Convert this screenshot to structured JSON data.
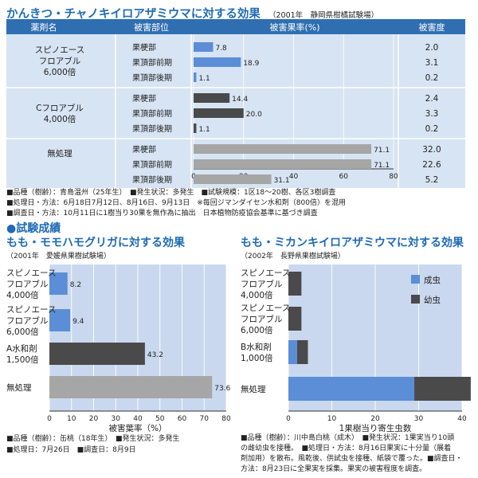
{
  "colors": {
    "blue_title": "#1f6bb5",
    "header_bg": "#2f6fb1",
    "table_bg": "#d7e4f3",
    "bar_grey": "#a6a6a6",
    "bar_blue": "#5b8ed6",
    "bar_dark": "#4a4a4a",
    "plot_bg": "#c9d8ee"
  },
  "top": {
    "title": "かんきつ・チャノキイロアザミウマに対する効果",
    "source": "（2001年　静岡県柑橘試験場）",
    "headers": {
      "agent": "薬剤名",
      "part": "被害部位",
      "rate": "被害果率(%)",
      "degree": "被害度"
    },
    "notes": [
      "■品種（樹齢）：青島温州（25年生）　■発生状況：多発生　■試験規模：1区18～20樹、各区3樹調査",
      "■処理日・方法：6月18日7月12日、8月16日、9月13日　※毎回ジマンダイセン水和剤（800倍）を混用",
      "■調査日・方法：10月11日に1樹当り30果を無作為に抽出　日本植物防疫協会基準に基づき調査"
    ]
  },
  "results_heading": "●試験成績",
  "bottom_left": {
    "title": "もも・モモハモグリガに対する効果",
    "source": "（2001年　愛媛県果樹試験場）",
    "notes": [
      "■品種（樹齢）：缶桃（18年生）　■発生状況：多発生",
      "■処理日：7月26日　■調査日：8月9日"
    ]
  },
  "bottom_right": {
    "title": "もも・ミカンキイロアザミウマに対する効果",
    "source": "（2002年　長野県果樹試験場）",
    "notes": [
      "■品種（樹齢）：川中島白桃（成木）　■発生状況：1果実当り10頭",
      "の雌幼虫を接種。　■処理日・方法：8月16日果実に十分量（展着",
      "剤加用）を散布。風乾後、供試虫を接種、紙袋で覆った。■調査日・",
      "方法：8月23日に全果実を採集。果実の被害程度を調査。"
    ]
  },
  "chart_data": [
    {
      "type": "bar",
      "orientation": "horizontal",
      "title": "かんきつ・チャノキイロアザミウマに対する効果",
      "groups": [
        {
          "agent_lines": [
            "スピノエース",
            "フロアブル",
            "6,000倍"
          ],
          "rows": [
            {
              "part": "果梗部",
              "value": 7.8,
              "degree": "2.0"
            },
            {
              "part": "果頂部前期",
              "value": 18.9,
              "degree": "3.1"
            },
            {
              "part": "果頂部後期",
              "value": 1.1,
              "degree": "0.2"
            }
          ]
        },
        {
          "agent_lines": [
            "Cフロアブル",
            "4,000倍"
          ],
          "rows": [
            {
              "part": "果梗部",
              "value": 14.4,
              "degree": "2.4"
            },
            {
              "part": "果頂部前期",
              "value": 20.0,
              "degree": "3.3"
            },
            {
              "part": "果頂部後期",
              "value": 1.1,
              "degree": "0.2"
            }
          ]
        },
        {
          "agent_lines": [
            "無処理"
          ],
          "rows": [
            {
              "part": "果梗部",
              "value": 71.1,
              "degree": "32.0"
            },
            {
              "part": "果頂部前期",
              "value": 71.1,
              "degree": "22.6"
            },
            {
              "part": "果頂部後期",
              "value": 31.1,
              "degree": "5.2"
            }
          ]
        }
      ],
      "value_labels": [
        "7.8",
        "18.9",
        "1.1",
        "14.4",
        "20.0",
        "1.1",
        "71.1",
        "71.1",
        "31.1"
      ],
      "xlim": [
        0,
        80
      ],
      "xticks": [
        "0",
        "20",
        "40",
        "60",
        "80"
      ]
    },
    {
      "type": "bar",
      "orientation": "horizontal",
      "title": "もも・モモハモグリガに対する効果",
      "xlabel": "被害葉率（%）",
      "categories": [
        {
          "lines": [
            "スピノエース",
            "フロアブル",
            "4,000倍"
          ],
          "value": 8.2,
          "label": "8.2"
        },
        {
          "lines": [
            "スピノエース",
            "フロアブル",
            "6,000倍"
          ],
          "value": 9.4,
          "label": "9.4"
        },
        {
          "lines": [
            "A水和剤",
            "1,500倍"
          ],
          "value": 43.2,
          "label": "43.2"
        },
        {
          "lines": [
            "無処理"
          ],
          "value": 73.6,
          "label": "73.6"
        }
      ],
      "xlim": [
        0,
        80
      ],
      "xticks": [
        "0",
        "10",
        "20",
        "30",
        "40",
        "50",
        "60",
        "70",
        "80"
      ]
    },
    {
      "type": "bar",
      "orientation": "horizontal",
      "stacked": true,
      "title": "もも・ミカンキイロアザミウマに対する効果",
      "xlabel": "1果樹当り寄生虫数",
      "series": [
        {
          "name": "成虫"
        },
        {
          "name": "幼虫"
        }
      ],
      "categories": [
        {
          "lines": [
            "スピノエース",
            "フロアブル",
            "4,000倍"
          ],
          "values": [
            0,
            3
          ]
        },
        {
          "lines": [
            "スピノエース",
            "フロアブル",
            "6,000倍"
          ],
          "values": [
            0,
            3
          ]
        },
        {
          "lines": [
            "B水和剤",
            "1,000倍"
          ],
          "values": [
            2,
            2.5
          ]
        },
        {
          "lines": [
            "無処理"
          ],
          "values": [
            29,
            13
          ]
        }
      ],
      "xlim": [
        0,
        40
      ],
      "xticks": [
        "0",
        "10",
        "20",
        "30",
        "40"
      ]
    }
  ]
}
